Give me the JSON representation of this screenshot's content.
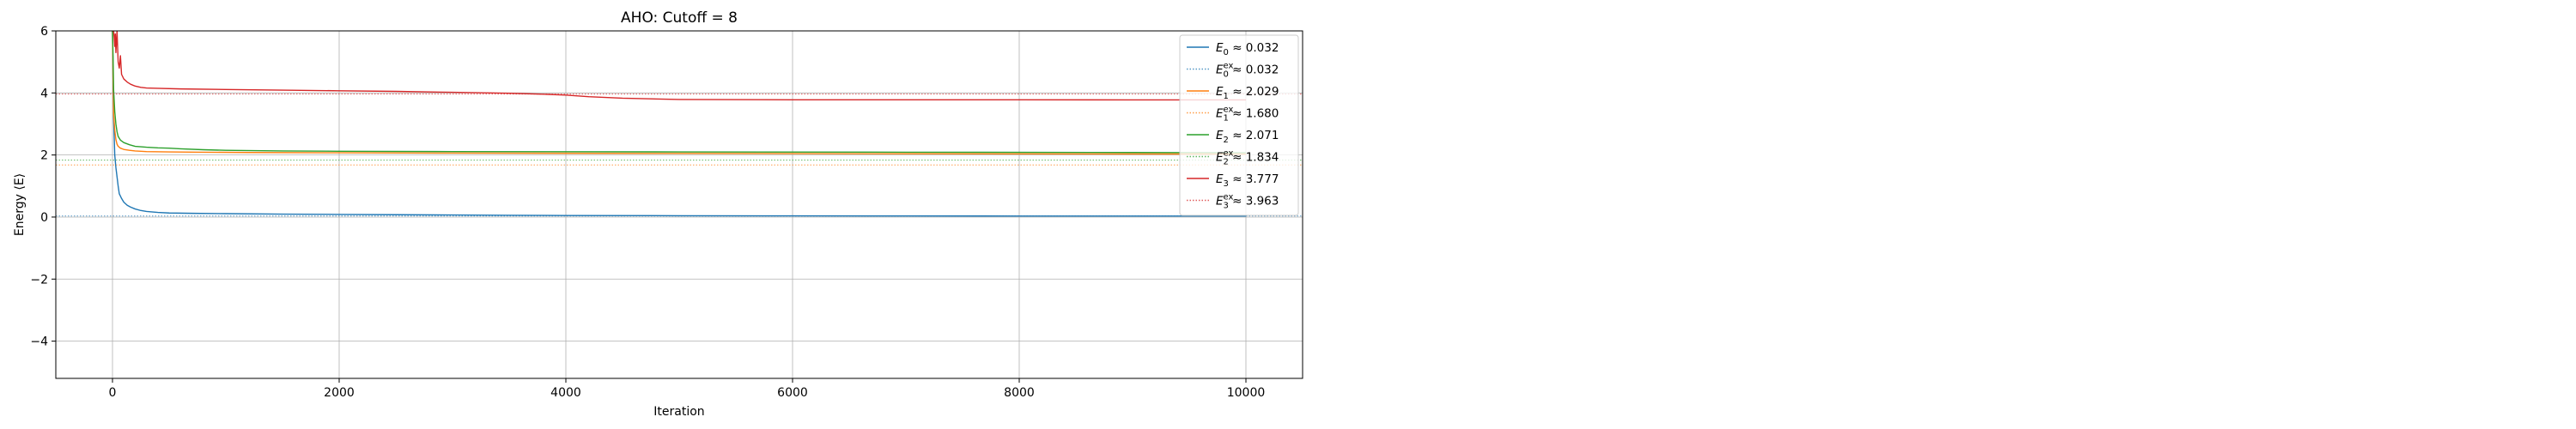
{
  "chart_data": {
    "type": "line",
    "title": "AHO: Cutoff = 8",
    "xlabel": "Iteration",
    "ylabel": "Energy ⟨E⟩",
    "xlim": [
      -500,
      10500
    ],
    "ylim": [
      -5.2,
      6
    ],
    "xticks": [
      0,
      2000,
      4000,
      6000,
      8000,
      10000
    ],
    "yticks": [
      -4,
      -2,
      0,
      2,
      4,
      6
    ],
    "grid": true,
    "legend_position": "upper-right",
    "series": [
      {
        "name": "E_0 ≈ 0.032",
        "legend": {
          "main": "E",
          "sub": "0",
          "sup": "",
          "value": " ≈ 0.032"
        },
        "color": "#1f77b4",
        "style": "solid",
        "x": [
          0,
          5,
          10,
          15,
          20,
          30,
          40,
          50,
          60,
          80,
          100,
          130,
          160,
          200,
          250,
          300,
          400,
          500,
          700,
          1000,
          1500,
          2000,
          2500,
          3000,
          3500,
          4000,
          5000,
          6000,
          7000,
          8000,
          9000,
          10000
        ],
        "y": [
          6,
          4.5,
          3.2,
          2.6,
          2.0,
          1.6,
          1.3,
          1.0,
          0.75,
          0.6,
          0.48,
          0.38,
          0.32,
          0.26,
          0.21,
          0.18,
          0.15,
          0.13,
          0.12,
          0.11,
          0.095,
          0.085,
          0.075,
          0.065,
          0.055,
          0.05,
          0.043,
          0.038,
          0.035,
          0.033,
          0.032,
          0.032
        ]
      },
      {
        "name": "E_0^ex ≈ 0.032",
        "legend": {
          "main": "E",
          "sub": "0",
          "sup": "ex",
          "value": " ≈ 0.032"
        },
        "color": "#1f77b4",
        "style": "dotted",
        "hline": 0.032
      },
      {
        "name": "E_1 ≈ 2.029",
        "legend": {
          "main": "E",
          "sub": "1",
          "sup": "",
          "value": " ≈ 2.029"
        },
        "color": "#ff7f0e",
        "style": "solid",
        "x": [
          0,
          5,
          10,
          20,
          30,
          40,
          50,
          70,
          100,
          150,
          200,
          300,
          500,
          800,
          1200,
          2000,
          3000,
          5000,
          7000,
          10000
        ],
        "y": [
          6,
          4.5,
          3.3,
          2.8,
          2.5,
          2.35,
          2.28,
          2.22,
          2.18,
          2.15,
          2.13,
          2.11,
          2.1,
          2.09,
          2.08,
          2.07,
          2.06,
          2.05,
          2.04,
          2.03
        ]
      },
      {
        "name": "E_1^ex ≈ 1.680",
        "legend": {
          "main": "E",
          "sub": "1",
          "sup": "ex",
          "value": " ≈ 1.680"
        },
        "color": "#ff7f0e",
        "style": "dotted",
        "hline": 1.68
      },
      {
        "name": "E_2 ≈ 2.071",
        "legend": {
          "main": "E",
          "sub": "2",
          "sup": "",
          "value": " ≈ 2.071"
        },
        "color": "#2ca02c",
        "style": "solid",
        "x": [
          0,
          5,
          10,
          20,
          30,
          40,
          50,
          70,
          100,
          150,
          200,
          300,
          400,
          500,
          600,
          800,
          1000,
          1500,
          2000,
          3000,
          5000,
          7000,
          9000,
          10000
        ],
        "y": [
          6,
          5.2,
          4.1,
          3.4,
          3.0,
          2.75,
          2.6,
          2.48,
          2.4,
          2.33,
          2.28,
          2.25,
          2.23,
          2.22,
          2.2,
          2.17,
          2.15,
          2.13,
          2.12,
          2.11,
          2.1,
          2.09,
          2.08,
          2.07
        ]
      },
      {
        "name": "E_2^ex ≈ 1.834",
        "legend": {
          "main": "E",
          "sub": "2",
          "sup": "ex",
          "value": " ≈ 1.834"
        },
        "color": "#2ca02c",
        "style": "dotted",
        "hline": 1.834
      },
      {
        "name": "E_3 ≈ 3.777",
        "legend": {
          "main": "E",
          "sub": "3",
          "sup": "",
          "value": " ≈ 3.777"
        },
        "color": "#d62728",
        "style": "solid",
        "x": [
          0,
          5,
          10,
          15,
          20,
          25,
          30,
          40,
          50,
          60,
          70,
          80,
          100,
          130,
          160,
          200,
          250,
          300,
          400,
          600,
          1000,
          1500,
          2000,
          2500,
          3000,
          3500,
          3800,
          4000,
          4200,
          4500,
          5000,
          6000,
          7000,
          8000,
          9000,
          10000
        ],
        "y": [
          6,
          6,
          6,
          5.8,
          5.5,
          5.9,
          5.3,
          6,
          5.0,
          4.8,
          5.2,
          4.6,
          4.45,
          4.35,
          4.28,
          4.22,
          4.18,
          4.16,
          4.15,
          4.13,
          4.11,
          4.09,
          4.07,
          4.05,
          4.02,
          3.99,
          3.96,
          3.93,
          3.88,
          3.83,
          3.79,
          3.78,
          3.78,
          3.778,
          3.777,
          3.777
        ]
      },
      {
        "name": "E_3^ex ≈ 3.963",
        "legend": {
          "main": "E",
          "sub": "3",
          "sup": "ex",
          "value": " ≈ 3.963"
        },
        "color": "#d62728",
        "style": "dotted",
        "hline": 3.963
      }
    ]
  }
}
